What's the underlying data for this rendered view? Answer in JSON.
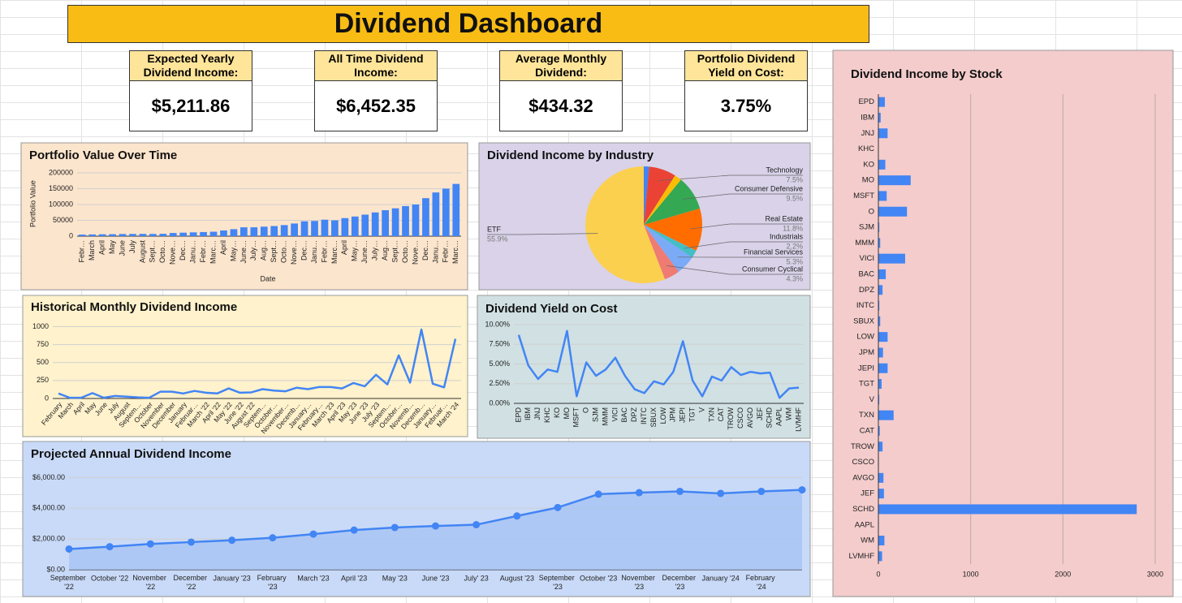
{
  "header": {
    "title": "Dividend Dashboard"
  },
  "kpis": [
    {
      "label": "Expected Yearly Dividend Income:",
      "value": "$5,211.86"
    },
    {
      "label": "All Time Dividend Income:",
      "value": "$6,452.35"
    },
    {
      "label": "Average Monthly Dividend:",
      "value": "$434.32"
    },
    {
      "label": "Portfolio Dividend Yield on Cost:",
      "value": "3.75%"
    }
  ],
  "chart_data": [
    {
      "type": "bar",
      "title": "Portfolio Value Over Time",
      "x_label": "Date",
      "y_label": "Portfolio Value",
      "color": "#4285f4",
      "grid": true,
      "categories": [
        "Febr…",
        "March",
        "April",
        "May",
        "June",
        "July",
        "August",
        "Sept…",
        "Octo…",
        "Nove…",
        "Dec…",
        "Janu…",
        "Febr…",
        "Marc…",
        "April",
        "May…",
        "June…",
        "July…",
        "Aug…",
        "Sept…",
        "Octo…",
        "Nove…",
        "Dec…",
        "Janu…",
        "Febr…",
        "Marc…",
        "April",
        "May…",
        "June…",
        "July…",
        "Aug…",
        "Sept…",
        "Octo…",
        "Nove…",
        "Dec…",
        "Janu…",
        "Febr…",
        "Marc…"
      ],
      "values": [
        5000,
        5500,
        6000,
        6200,
        6800,
        7000,
        7200,
        7000,
        7500,
        10000,
        11000,
        12000,
        13000,
        14000,
        18000,
        22000,
        28000,
        28000,
        30000,
        32000,
        35000,
        40000,
        47000,
        48000,
        52000,
        50000,
        57000,
        62000,
        68000,
        75000,
        82000,
        88000,
        95000,
        100000,
        120000,
        138000,
        150000,
        165000
      ],
      "ylim": [
        0,
        205000
      ],
      "yticks": [
        0,
        50000,
        100000,
        150000,
        200000
      ]
    },
    {
      "type": "pie",
      "title": "Dividend Income by Industry",
      "categories": [
        null,
        "Technology",
        null,
        "Consumer Defensive",
        "Real Estate",
        "Industrials",
        "Financial Services",
        "Consumer Cyclical",
        "ETF"
      ],
      "values": [
        1.5,
        7.5,
        2.0,
        9.5,
        11.8,
        2.2,
        5.3,
        4.3,
        55.9
      ],
      "value_labels": [
        null,
        "7.5%",
        null,
        "9.5%",
        "11.8%",
        "2.2%",
        "5.3%",
        "4.3%",
        "55.9%"
      ],
      "colors": [
        "#4285f4",
        "#ea4335",
        "#fbbc04",
        "#34a853",
        "#ff6d01",
        "#46bdc6",
        "#7baaf7",
        "#f07b72",
        "#fcd04f"
      ]
    },
    {
      "type": "line",
      "title": "Historical Monthly Dividend Income",
      "color": "#4285f4",
      "grid": true,
      "categories": [
        "February",
        "March",
        "April",
        "May",
        "June",
        "July",
        "August",
        "Septem…",
        "October",
        "November",
        "December",
        "January",
        "Februar…",
        "March '22",
        "April '22",
        "May '22",
        "June '22",
        "August '22",
        "Septem…",
        "October…",
        "November…",
        "Decemb…",
        "January…",
        "February…",
        "March '23",
        "April '23",
        "May '23",
        "June '23",
        "July '23",
        "Septem…",
        "October…",
        "Novemb…",
        "Decemb…",
        "January…",
        "Februar…",
        "March '24"
      ],
      "values": [
        70,
        10,
        10,
        75,
        10,
        35,
        25,
        15,
        10,
        95,
        95,
        70,
        105,
        80,
        70,
        140,
        80,
        85,
        130,
        110,
        100,
        150,
        130,
        160,
        160,
        140,
        215,
        170,
        330,
        195,
        600,
        220,
        960,
        205,
        155,
        830
      ],
      "ylim": [
        0,
        1050
      ],
      "yticks": [
        0,
        250,
        500,
        750,
        1000
      ]
    },
    {
      "type": "line",
      "title": "Dividend Yield on Cost",
      "color": "#4285f4",
      "grid": true,
      "categories": [
        "EPD",
        "IBM",
        "JNJ",
        "KHC",
        "KO",
        "MO",
        "MSFT",
        "O",
        "SJM",
        "MMM",
        "VICI",
        "BAC",
        "DPZ",
        "INTC",
        "SBUX",
        "LOW",
        "JPM",
        "JEPI",
        "TGT",
        "V",
        "TXN",
        "CAT",
        "TROW",
        "CSCO",
        "AVGO",
        "JEF",
        "SCHD",
        "AAPL",
        "WM",
        "LVMHF"
      ],
      "values": [
        8.7,
        4.8,
        3.1,
        4.3,
        4.0,
        9.2,
        0.9,
        5.2,
        3.5,
        4.3,
        5.8,
        3.5,
        1.8,
        1.3,
        2.8,
        2.4,
        4.0,
        7.9,
        2.9,
        0.9,
        3.4,
        2.9,
        4.6,
        3.6,
        4.0,
        3.8,
        3.9,
        0.7,
        1.9,
        2.0
      ],
      "ylim": [
        0,
        10
      ],
      "yticks": [
        {
          "value": 0,
          "label": "0.00%"
        },
        {
          "value": 2.5,
          "label": "2.50%"
        },
        {
          "value": 5,
          "label": "5.00%"
        },
        {
          "value": 7.5,
          "label": "7.50%"
        },
        {
          "value": 10,
          "label": "10.00%"
        }
      ]
    },
    {
      "type": "area",
      "title": "Projected Annual Dividend Income",
      "color": "#4285f4",
      "area_color": "#a4c2f4",
      "markers": true,
      "grid": true,
      "categories": [
        "September '22",
        "October '22",
        "November '22",
        "December '22",
        "January '23",
        "February '23",
        "March '23",
        "April '23",
        "May '23",
        "June '23",
        "July' 23",
        "August '23",
        "September '23",
        "October '23",
        "November '23",
        "December '23",
        "January '24",
        "February '24",
        null
      ],
      "values": [
        1350,
        1500,
        1680,
        1800,
        1920,
        2080,
        2320,
        2580,
        2750,
        2850,
        2930,
        3500,
        4050,
        4920,
        5020,
        5100,
        4970,
        5100,
        5200
      ],
      "ylim": [
        0,
        6500
      ],
      "yticks": [
        {
          "value": 0,
          "label": "$0.00"
        },
        {
          "value": 2000,
          "label": "$2,000.00"
        },
        {
          "value": 4000,
          "label": "$4,000.00"
        },
        {
          "value": 6000,
          "label": "$6,000.00"
        }
      ]
    },
    {
      "type": "barh",
      "title": "Dividend Income by Stock",
      "color": "#4285f4",
      "grid": true,
      "categories": [
        "EPD",
        "IBM",
        "JNJ",
        "KHC",
        "KO",
        "MO",
        "MSFT",
        "O",
        "SJM",
        "MMM",
        "VICI",
        "BAC",
        "DPZ",
        "INTC",
        "SBUX",
        "LOW",
        "JPM",
        "JEPI",
        "TGT",
        "V",
        "TXN",
        "CAT",
        "TROW",
        "CSCO",
        "AVGO",
        "JEF",
        "SCHD",
        "AAPL",
        "WM",
        "LVMHF"
      ],
      "values": [
        70,
        25,
        100,
        0,
        75,
        350,
        90,
        310,
        10,
        20,
        290,
        80,
        45,
        10,
        20,
        100,
        50,
        100,
        35,
        10,
        165,
        15,
        45,
        5,
        55,
        60,
        2800,
        5,
        65,
        40
      ],
      "xlim": [
        0,
        3150
      ],
      "xticks": [
        0,
        1000,
        2000,
        3000
      ]
    }
  ]
}
